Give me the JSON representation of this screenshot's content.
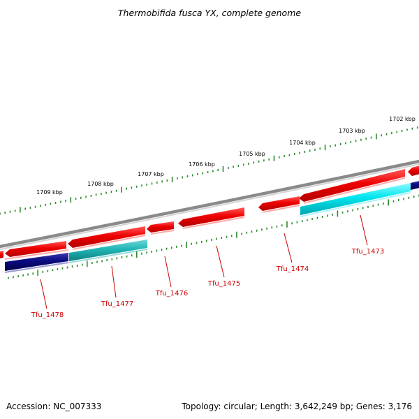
{
  "title": "Thermobifida fusca YX, complete genome",
  "footer": {
    "accession": "Accession: NC_007333",
    "topology": "Topology: circular; Length: 3,642,249 bp; Genes: 3,176"
  },
  "scale": {
    "labels": [
      "1709 kbp",
      "1708 kbp",
      "1707 kbp",
      "1706 kbp",
      "1705 kbp",
      "1704 kbp",
      "1703 kbp",
      "1702 kbp"
    ],
    "tick_color": "#2e8b2e"
  },
  "genes": {
    "forward_strand_color": "#ee0000",
    "reverse_strand_color": "#00e5ee",
    "dark_reverse_color": "#0a0a80",
    "labels": [
      "Tfu_1478",
      "Tfu_1477",
      "Tfu_1476",
      "Tfu_1475",
      "Tfu_1474",
      "Tfu_1473"
    ]
  },
  "colors": {
    "backbone": "#888888",
    "label_color": "#cc0000"
  }
}
